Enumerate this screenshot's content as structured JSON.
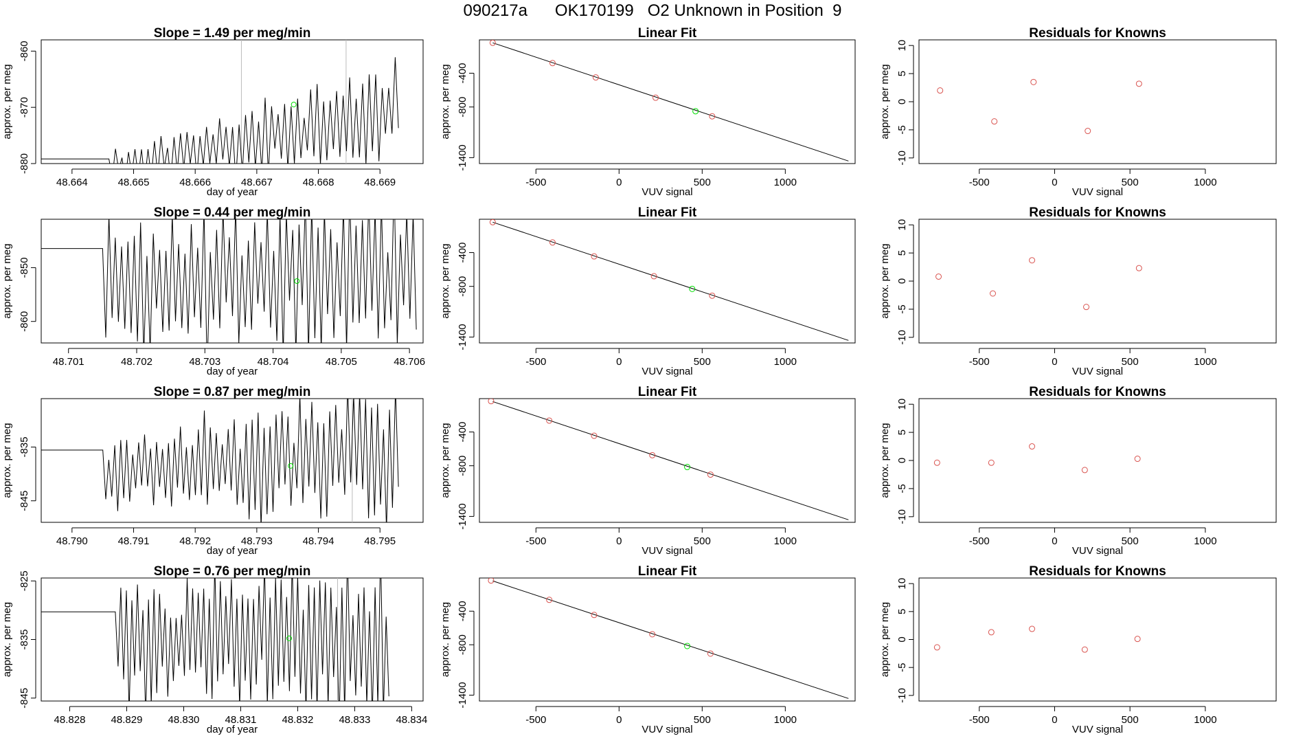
{
  "page": {
    "title": "090217a      OK170199   O2 Unknown in Position  9"
  },
  "colors": {
    "line": "#000000",
    "known_point": "#d9534f",
    "unknown_point": "#00dd00",
    "vline": "#bbbbbb",
    "axis": "#000000"
  },
  "chart_data": [
    {
      "type": "line",
      "row": 0,
      "panel": "timeseries",
      "title": "Slope =  1.49  per meg/min",
      "xlabel": "day of year",
      "ylabel": "approx. per meg",
      "xlim": [
        48.6635,
        48.6697
      ],
      "ylim": [
        -880,
        -858
      ],
      "xticks": [
        48.664,
        48.665,
        48.666,
        48.667,
        48.668,
        48.669
      ],
      "xtick_labels": [
        "48.664",
        "48.665",
        "48.666",
        "48.667",
        "48.668",
        "48.669"
      ],
      "yticks": [
        -880,
        -870,
        -860
      ],
      "ytick_labels": [
        "-880",
        "-870",
        "-860"
      ],
      "vlines": [
        48.66675,
        48.66845
      ],
      "unknown_marker": {
        "x": 48.6676,
        "y": -869.5
      },
      "series_x_range": [
        48.6646,
        48.6693
      ],
      "n_points": 90,
      "trend": [
        -880.5,
        -870.5
      ],
      "amplitude": [
        3,
        10
      ],
      "seed": 11
    },
    {
      "type": "scatter",
      "row": 0,
      "panel": "linear_fit",
      "title": "Linear Fit",
      "xlabel": "VUV signal",
      "ylabel": "approx. per meg",
      "xlim": [
        -840,
        1420
      ],
      "ylim": [
        -1470,
        -5
      ],
      "xticks": [
        -500,
        0,
        500,
        1000
      ],
      "xtick_labels": [
        "-500",
        "0",
        "500",
        "1000"
      ],
      "yticks": [
        -400,
        -800,
        -1400
      ],
      "ytick_labels": [
        "-400",
        "-800",
        "-1400"
      ],
      "fit_line": {
        "x": [
          -760,
          1380
        ],
        "y": [
          -40,
          -1440
        ]
      },
      "known_points": [
        {
          "x": -760,
          "y": -40
        },
        {
          "x": -400,
          "y": -280
        },
        {
          "x": -140,
          "y": -450
        },
        {
          "x": 220,
          "y": -690
        },
        {
          "x": 560,
          "y": -910
        }
      ],
      "unknown_point": {
        "x": 460,
        "y": -850
      }
    },
    {
      "type": "scatter",
      "row": 0,
      "panel": "residuals",
      "title": "Residuals for Knowns",
      "xlabel": "VUV signal",
      "ylabel": "approx. per meg",
      "xlim": [
        -900,
        1470
      ],
      "ylim": [
        -11,
        11
      ],
      "xticks": [
        -500,
        0,
        500,
        1000
      ],
      "xtick_labels": [
        "-500",
        "0",
        "500",
        "1000"
      ],
      "yticks": [
        -10,
        -5,
        0,
        5,
        10
      ],
      "ytick_labels": [
        "-10",
        "-5",
        "0",
        "5",
        "10"
      ],
      "known_points": [
        {
          "x": -760,
          "y": 2
        },
        {
          "x": -400,
          "y": -3.5
        },
        {
          "x": -140,
          "y": 3.5
        },
        {
          "x": 220,
          "y": -5.2
        },
        {
          "x": 560,
          "y": 3.2
        }
      ]
    },
    {
      "type": "line",
      "row": 1,
      "panel": "timeseries",
      "title": "Slope =  0.44  per meg/min",
      "xlabel": "day of year",
      "ylabel": "approx. per meg",
      "xlim": [
        48.7006,
        48.7062
      ],
      "ylim": [
        -864,
        -841
      ],
      "xticks": [
        48.701,
        48.702,
        48.703,
        48.704,
        48.705,
        48.706
      ],
      "xtick_labels": [
        "48.701",
        "48.702",
        "48.703",
        "48.704",
        "48.705",
        "48.706"
      ],
      "yticks": [
        -860,
        -850
      ],
      "ytick_labels": [
        "-860",
        "-850"
      ],
      "vlines": [],
      "unknown_marker": {
        "x": 48.70435,
        "y": -852.5
      },
      "series_x_range": [
        48.7015,
        48.7061
      ],
      "n_points": 100,
      "trend": [
        -853,
        -852
      ],
      "amplitude": [
        14,
        16
      ],
      "seed": 23
    },
    {
      "type": "scatter",
      "row": 1,
      "panel": "linear_fit",
      "title": "Linear Fit",
      "xlabel": "VUV signal",
      "ylabel": "approx. per meg",
      "xlim": [
        -840,
        1420
      ],
      "ylim": [
        -1470,
        -5
      ],
      "xticks": [
        -500,
        0,
        500,
        1000
      ],
      "xtick_labels": [
        "-500",
        "0",
        "500",
        "1000"
      ],
      "yticks": [
        -400,
        -800,
        -1400
      ],
      "ytick_labels": [
        "-400",
        "-800",
        "-1400"
      ],
      "fit_line": {
        "x": [
          -760,
          1380
        ],
        "y": [
          -40,
          -1440
        ]
      },
      "known_points": [
        {
          "x": -760,
          "y": -40
        },
        {
          "x": -400,
          "y": -280
        },
        {
          "x": -150,
          "y": -445
        },
        {
          "x": 210,
          "y": -680
        },
        {
          "x": 560,
          "y": -910
        }
      ],
      "unknown_point": {
        "x": 440,
        "y": -830
      }
    },
    {
      "type": "scatter",
      "row": 1,
      "panel": "residuals",
      "title": "Residuals for Knowns",
      "xlabel": "VUV signal",
      "ylabel": "approx. per meg",
      "xlim": [
        -900,
        1470
      ],
      "ylim": [
        -11,
        11
      ],
      "xticks": [
        -500,
        0,
        500,
        1000
      ],
      "xtick_labels": [
        "-500",
        "0",
        "500",
        "1000"
      ],
      "yticks": [
        -10,
        -5,
        0,
        5,
        10
      ],
      "ytick_labels": [
        "-10",
        "-5",
        "0",
        "5",
        "10"
      ],
      "known_points": [
        {
          "x": -770,
          "y": 0.8
        },
        {
          "x": -410,
          "y": -2.2
        },
        {
          "x": -150,
          "y": 3.7
        },
        {
          "x": 210,
          "y": -4.6
        },
        {
          "x": 560,
          "y": 2.3
        }
      ]
    },
    {
      "type": "line",
      "row": 2,
      "panel": "timeseries",
      "title": "Slope =  0.87  per meg/min",
      "xlabel": "day of year",
      "ylabel": "approx. per meg",
      "xlim": [
        48.7895,
        48.7957
      ],
      "ylim": [
        -849,
        -826
      ],
      "xticks": [
        48.79,
        48.791,
        48.792,
        48.793,
        48.794,
        48.795
      ],
      "xtick_labels": [
        "48.790",
        "48.791",
        "48.792",
        "48.793",
        "48.794",
        "48.795"
      ],
      "yticks": [
        -845,
        -835
      ],
      "ytick_labels": [
        "-845",
        "-835"
      ],
      "vlines": [
        48.79455
      ],
      "unknown_marker": {
        "x": 48.79355,
        "y": -838.5
      },
      "series_x_range": [
        48.7905,
        48.7953
      ],
      "n_points": 100,
      "trend": [
        -840,
        -836
      ],
      "amplitude": [
        8,
        14
      ],
      "seed": 37
    },
    {
      "type": "scatter",
      "row": 2,
      "panel": "linear_fit",
      "title": "Linear Fit",
      "xlabel": "VUV signal",
      "ylabel": "approx. per meg",
      "xlim": [
        -840,
        1420
      ],
      "ylim": [
        -1470,
        -5
      ],
      "xticks": [
        -500,
        0,
        500,
        1000
      ],
      "xtick_labels": [
        "-500",
        "0",
        "500",
        "1000"
      ],
      "yticks": [
        -400,
        -800,
        -1400
      ],
      "ytick_labels": [
        "-400",
        "-800",
        "-1400"
      ],
      "fit_line": {
        "x": [
          -760,
          1380
        ],
        "y": [
          -40,
          -1440
        ]
      },
      "known_points": [
        {
          "x": -770,
          "y": -35
        },
        {
          "x": -420,
          "y": -265
        },
        {
          "x": -150,
          "y": -445
        },
        {
          "x": 200,
          "y": -675
        },
        {
          "x": 550,
          "y": -905
        }
      ],
      "unknown_point": {
        "x": 410,
        "y": -815
      }
    },
    {
      "type": "scatter",
      "row": 2,
      "panel": "residuals",
      "title": "Residuals for Knowns",
      "xlabel": "VUV signal",
      "ylabel": "approx. per meg",
      "xlim": [
        -900,
        1470
      ],
      "ylim": [
        -11,
        11
      ],
      "xticks": [
        -500,
        0,
        500,
        1000
      ],
      "xtick_labels": [
        "-500",
        "0",
        "500",
        "1000"
      ],
      "yticks": [
        -10,
        -5,
        0,
        5,
        10
      ],
      "ytick_labels": [
        "-10",
        "-5",
        "0",
        "5",
        "10"
      ],
      "known_points": [
        {
          "x": -780,
          "y": -0.4
        },
        {
          "x": -420,
          "y": -0.4
        },
        {
          "x": -150,
          "y": 2.5
        },
        {
          "x": 200,
          "y": -1.7
        },
        {
          "x": 550,
          "y": 0.3
        }
      ]
    },
    {
      "type": "line",
      "row": 3,
      "panel": "timeseries",
      "title": "Slope =  0.76  per meg/min",
      "xlabel": "day of year",
      "ylabel": "approx. per meg",
      "xlim": [
        48.8275,
        48.8342
      ],
      "ylim": [
        -845.5,
        -824.5
      ],
      "xticks": [
        48.828,
        48.829,
        48.83,
        48.831,
        48.832,
        48.833,
        48.834
      ],
      "xtick_labels": [
        "48.828",
        "48.829",
        "48.830",
        "48.831",
        "48.832",
        "48.833",
        "48.834"
      ],
      "yticks": [
        -845,
        -835,
        -825
      ],
      "ytick_labels": [
        "-845",
        "-835",
        "-825"
      ],
      "vlines": [
        48.8327
      ],
      "unknown_marker": {
        "x": 48.83185,
        "y": -834.8
      },
      "series_x_range": [
        48.8288,
        48.8336
      ],
      "n_points": 100,
      "trend": [
        -835,
        -835
      ],
      "amplitude": [
        12,
        14
      ],
      "seed": 53
    },
    {
      "type": "scatter",
      "row": 3,
      "panel": "linear_fit",
      "title": "Linear Fit",
      "xlabel": "VUV signal",
      "ylabel": "approx. per meg",
      "xlim": [
        -840,
        1420
      ],
      "ylim": [
        -1470,
        -5
      ],
      "xticks": [
        -500,
        0,
        500,
        1000
      ],
      "xtick_labels": [
        "-500",
        "0",
        "500",
        "1000"
      ],
      "yticks": [
        -400,
        -800,
        -1400
      ],
      "ytick_labels": [
        "-400",
        "-800",
        "-1400"
      ],
      "fit_line": {
        "x": [
          -760,
          1380
        ],
        "y": [
          -40,
          -1440
        ]
      },
      "known_points": [
        {
          "x": -770,
          "y": -35
        },
        {
          "x": -420,
          "y": -265
        },
        {
          "x": -150,
          "y": -445
        },
        {
          "x": 200,
          "y": -675
        },
        {
          "x": 550,
          "y": -905
        }
      ],
      "unknown_point": {
        "x": 410,
        "y": -815
      }
    },
    {
      "type": "scatter",
      "row": 3,
      "panel": "residuals",
      "title": "Residuals for Knowns",
      "xlabel": "VUV signal",
      "ylabel": "approx. per meg",
      "xlim": [
        -900,
        1470
      ],
      "ylim": [
        -11,
        11
      ],
      "xticks": [
        -500,
        0,
        500,
        1000
      ],
      "xtick_labels": [
        "-500",
        "0",
        "500",
        "1000"
      ],
      "yticks": [
        -10,
        -5,
        0,
        5,
        10
      ],
      "ytick_labels": [
        "-10",
        "-5",
        "0",
        "5",
        "10"
      ],
      "known_points": [
        {
          "x": -780,
          "y": -1.4
        },
        {
          "x": -420,
          "y": 1.3
        },
        {
          "x": -150,
          "y": 1.9
        },
        {
          "x": 200,
          "y": -1.8
        },
        {
          "x": 550,
          "y": 0.1
        }
      ]
    }
  ]
}
